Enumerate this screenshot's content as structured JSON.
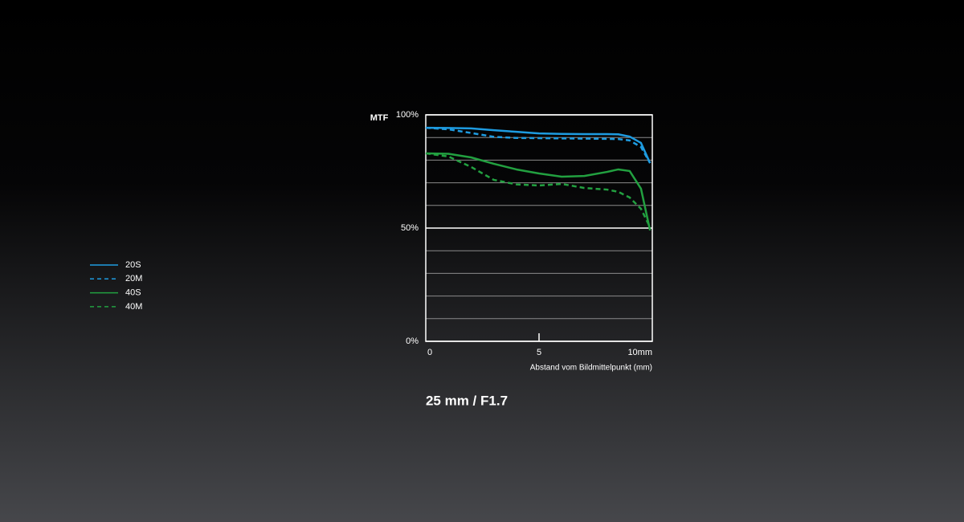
{
  "chart_data": {
    "type": "line",
    "title": "25 mm / F1.7",
    "ylabel": "MTF",
    "xlabel": "Abstand vom Bildmittelpunkt  (mm)",
    "x": [
      0,
      1,
      2,
      3,
      4,
      5,
      6,
      7,
      8,
      8.5,
      9,
      9.5,
      9.9
    ],
    "series": [
      {
        "name": "20S",
        "color": "#1e9be0",
        "dashed": false,
        "values": [
          94.3,
          94.2,
          94,
          93.2,
          92.5,
          91.8,
          91.6,
          91.5,
          91.5,
          91.4,
          90.4,
          87.6,
          78.7
        ]
      },
      {
        "name": "20M",
        "color": "#1e9be0",
        "dashed": true,
        "values": [
          94.3,
          93.6,
          92,
          90.3,
          89.8,
          89.7,
          89.6,
          89.5,
          89.4,
          89.3,
          88.7,
          85.8,
          78.7
        ]
      },
      {
        "name": "40S",
        "color": "#22a040",
        "dashed": false,
        "values": [
          83,
          82.8,
          81.2,
          78.4,
          75.9,
          74.1,
          72.7,
          73,
          74.8,
          75.9,
          75.2,
          67.4,
          49
        ]
      },
      {
        "name": "40M",
        "color": "#22a040",
        "dashed": true,
        "values": [
          83,
          81.6,
          77,
          71.3,
          69.3,
          68.8,
          69.5,
          67.7,
          67,
          66,
          63.5,
          58.5,
          50.4
        ]
      }
    ],
    "xlim": [
      0,
      10
    ],
    "ylim": [
      0,
      100
    ],
    "xticks": [
      0,
      5,
      {
        "value": 10,
        "label": "10mm"
      }
    ],
    "yticks": [
      {
        "value": 0,
        "label": "0%"
      },
      {
        "value": 50,
        "label": "50%"
      },
      {
        "value": 100,
        "label": "100%"
      }
    ],
    "minor_yticks": [
      10,
      20,
      30,
      40,
      60,
      70,
      80,
      90
    ],
    "grid": true,
    "legend": "left"
  }
}
